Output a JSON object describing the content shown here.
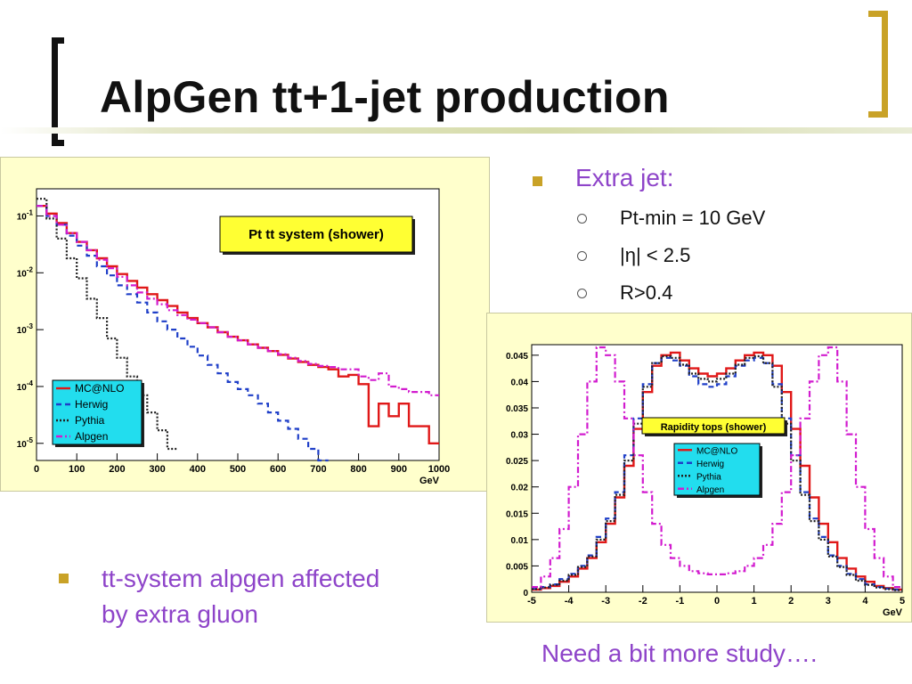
{
  "slide": {
    "title": "AlpGen tt+1-jet production",
    "accent_color": "#c9a227",
    "text_color": "#8e44c9"
  },
  "bullets": {
    "extra_jet": "Extra jet:",
    "sub": [
      "Pt-min = 10 GeV",
      "|η| < 2.5",
      "R>0.4"
    ],
    "bottom": [
      "tt-system alpgen affected",
      "by extra gluon"
    ],
    "footer": "Need a bit more study…."
  },
  "chart_data": [
    {
      "type": "line",
      "title": "Pt tt system (shower)",
      "xlabel": "GeV",
      "ylabel": "",
      "xlim": [
        0,
        1000
      ],
      "ylim": [
        5e-06,
        0.3
      ],
      "yscale": "log",
      "xticks": [
        "0",
        "100",
        "200",
        "300",
        "400",
        "500",
        "600",
        "700",
        "800",
        "900",
        "1000"
      ],
      "yticks": [
        "10^-5",
        "10^-4",
        "10^-3",
        "10^-2",
        "10^-1"
      ],
      "legend_position": "bottom-left",
      "x": [
        0,
        25,
        50,
        75,
        100,
        125,
        150,
        175,
        200,
        225,
        250,
        275,
        300,
        325,
        350,
        375,
        400,
        425,
        450,
        475,
        500,
        525,
        550,
        575,
        600,
        625,
        650,
        675,
        700,
        725,
        750,
        775,
        800,
        825,
        850,
        875,
        900,
        925,
        950,
        975
      ],
      "series": [
        {
          "name": "MC@NLO",
          "color": "#e01818",
          "style": "solid",
          "values": [
            0.15,
            0.11,
            0.075,
            0.05,
            0.035,
            0.025,
            0.018,
            0.013,
            0.0095,
            0.0072,
            0.0055,
            0.0042,
            0.0033,
            0.0026,
            0.002,
            0.0016,
            0.0013,
            0.0011,
            0.0009,
            0.00075,
            0.00065,
            0.00055,
            0.00048,
            0.00042,
            0.00036,
            0.00031,
            0.00027,
            0.00024,
            0.00022,
            0.0002,
            0.00015,
            0.00016,
            0.00011,
            2e-05,
            5e-05,
            3e-05,
            5e-05,
            2e-05,
            2e-05,
            1e-05
          ]
        },
        {
          "name": "Herwig",
          "color": "#1f3fc8",
          "style": "dash",
          "values": [
            0.15,
            0.1,
            0.07,
            0.045,
            0.03,
            0.02,
            0.013,
            0.009,
            0.006,
            0.0042,
            0.003,
            0.002,
            0.0014,
            0.001,
            0.0007,
            0.0005,
            0.00035,
            0.00024,
            0.00017,
            0.00012,
            9e-05,
            7e-05,
            5e-05,
            3.5e-05,
            2.5e-05,
            1.8e-05,
            1.2e-05,
            8e-06,
            5e-06,
            null,
            null,
            null,
            null,
            null,
            null,
            null,
            null,
            null,
            null,
            null
          ]
        },
        {
          "name": "Pythia",
          "color": "#222222",
          "style": "dot",
          "values": [
            0.2,
            0.09,
            0.04,
            0.018,
            0.008,
            0.0035,
            0.0016,
            0.0007,
            0.00032,
            0.00015,
            7e-05,
            3.5e-05,
            1.7e-05,
            8e-06,
            null,
            null,
            null,
            null,
            null,
            null,
            null,
            null,
            null,
            null,
            null,
            null,
            null,
            null,
            null,
            null,
            null,
            null,
            null,
            null,
            null,
            null,
            null,
            null,
            null,
            null
          ]
        },
        {
          "name": "Alpgen",
          "color": "#d21ccf",
          "style": "dashdot",
          "values": [
            0.15,
            0.1,
            0.07,
            0.05,
            0.035,
            0.025,
            0.017,
            0.012,
            0.0085,
            0.006,
            0.0045,
            0.0035,
            0.0028,
            0.0022,
            0.0018,
            0.0015,
            0.0013,
            0.0011,
            0.0009,
            0.00075,
            0.00065,
            0.00055,
            0.00048,
            0.00042,
            0.00037,
            0.00032,
            0.00028,
            0.00025,
            0.00023,
            0.00022,
            0.0002,
            0.0002,
            0.00015,
            0.00013,
            0.00017,
            0.0001,
            9e-05,
            8e-05,
            8e-05,
            7e-05
          ]
        }
      ]
    },
    {
      "type": "line",
      "title": "Rapidity tops (shower)",
      "xlabel": "GeV",
      "ylabel": "",
      "xlim": [
        -5,
        5
      ],
      "ylim": [
        0,
        0.047
      ],
      "xticks": [
        "-5",
        "-4",
        "-3",
        "-2",
        "-1",
        "0",
        "1",
        "2",
        "3",
        "4",
        "5"
      ],
      "yticks": [
        "0",
        "0.005",
        "0.01",
        "0.015",
        "0.02",
        "0.025",
        "0.03",
        "0.035",
        "0.04",
        "0.045"
      ],
      "legend_position": "center-right",
      "x": [
        -5,
        -4.75,
        -4.5,
        -4.25,
        -4,
        -3.75,
        -3.5,
        -3.25,
        -3,
        -2.75,
        -2.5,
        -2.25,
        -2,
        -1.75,
        -1.5,
        -1.25,
        -1,
        -0.75,
        -0.5,
        -0.25,
        0,
        0.25,
        0.5,
        0.75,
        1,
        1.25,
        1.5,
        1.75,
        2,
        2.25,
        2.5,
        2.75,
        3,
        3.25,
        3.5,
        3.75,
        4,
        4.25,
        4.5,
        4.75
      ],
      "series": [
        {
          "name": "MC@NLO",
          "color": "#e01818",
          "style": "solid",
          "values": [
            0.0005,
            0.0008,
            0.0012,
            0.002,
            0.003,
            0.0045,
            0.0065,
            0.0095,
            0.013,
            0.018,
            0.024,
            0.031,
            0.038,
            0.043,
            0.045,
            0.0455,
            0.044,
            0.0425,
            0.0415,
            0.041,
            0.0415,
            0.0425,
            0.044,
            0.045,
            0.0455,
            0.045,
            0.043,
            0.038,
            0.031,
            0.024,
            0.018,
            0.013,
            0.0095,
            0.0065,
            0.0045,
            0.003,
            0.002,
            0.0012,
            0.0008,
            0.0005
          ]
        },
        {
          "name": "Herwig",
          "color": "#1f3fc8",
          "style": "dash",
          "values": [
            0.0007,
            0.001,
            0.0015,
            0.0025,
            0.0035,
            0.005,
            0.007,
            0.0105,
            0.014,
            0.019,
            0.026,
            0.033,
            0.0395,
            0.0435,
            0.0445,
            0.044,
            0.043,
            0.041,
            0.0395,
            0.039,
            0.0395,
            0.041,
            0.043,
            0.044,
            0.0445,
            0.0435,
            0.0395,
            0.033,
            0.026,
            0.019,
            0.014,
            0.0105,
            0.007,
            0.005,
            0.0035,
            0.0025,
            0.0015,
            0.001,
            0.0007,
            0.0005
          ]
        },
        {
          "name": "Pythia",
          "color": "#222222",
          "style": "dot",
          "values": [
            0.0006,
            0.0009,
            0.0014,
            0.0022,
            0.0033,
            0.0048,
            0.0068,
            0.01,
            0.0135,
            0.0185,
            0.025,
            0.032,
            0.039,
            0.0435,
            0.0448,
            0.0445,
            0.0432,
            0.0415,
            0.0405,
            0.04,
            0.0405,
            0.0415,
            0.0432,
            0.0445,
            0.0448,
            0.0435,
            0.039,
            0.032,
            0.025,
            0.0185,
            0.0135,
            0.01,
            0.0068,
            0.0048,
            0.0033,
            0.0022,
            0.0014,
            0.0009,
            0.0006,
            0.0004
          ]
        },
        {
          "name": "Alpgen",
          "color": "#d21ccf",
          "style": "dashdot",
          "values": [
            0.001,
            0.003,
            0.0065,
            0.012,
            0.02,
            0.03,
            0.04,
            0.0465,
            0.045,
            0.04,
            0.033,
            0.026,
            0.019,
            0.013,
            0.009,
            0.0065,
            0.005,
            0.004,
            0.0036,
            0.0034,
            0.0034,
            0.0036,
            0.004,
            0.005,
            0.0065,
            0.009,
            0.013,
            0.019,
            0.026,
            0.033,
            0.04,
            0.045,
            0.0465,
            0.04,
            0.03,
            0.02,
            0.012,
            0.0065,
            0.003,
            0.001
          ]
        }
      ]
    }
  ]
}
